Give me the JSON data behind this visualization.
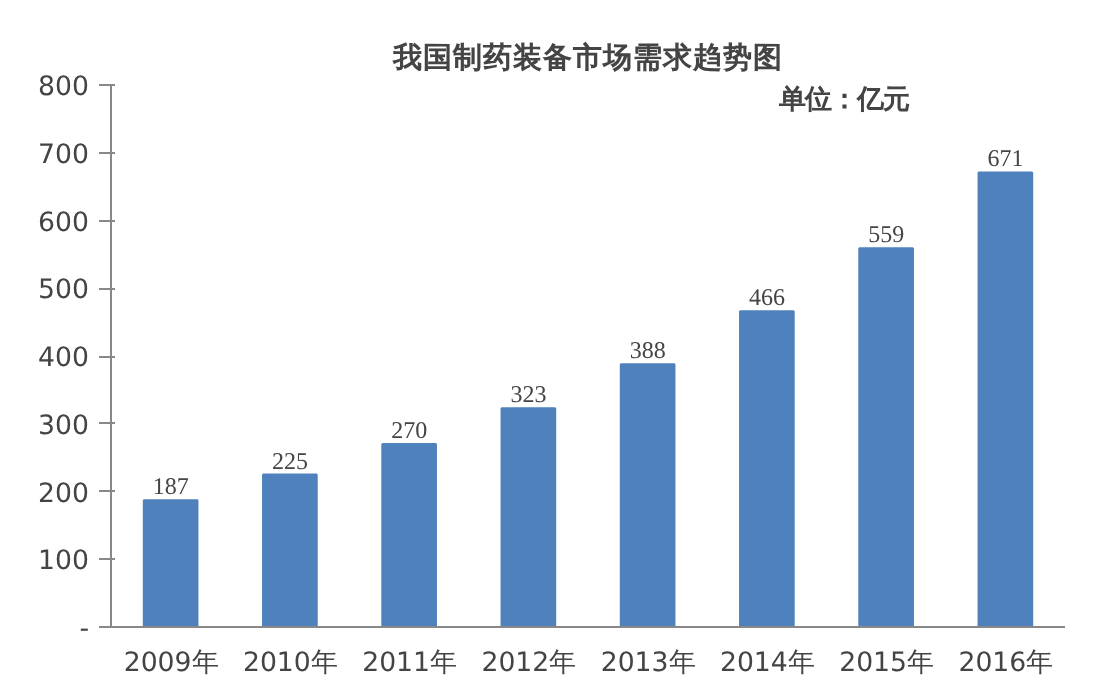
{
  "chart_data": {
    "type": "bar",
    "title": "我国制药装备市场需求趋势图",
    "annotations": [
      "单位：亿元"
    ],
    "categories": [
      "2009年",
      "2010年",
      "2011年",
      "2012年",
      "2013年",
      "2014年",
      "2015年",
      "2016年"
    ],
    "values": [
      187,
      225,
      270,
      323,
      388,
      466,
      559,
      671
    ],
    "color": "#4f81bd",
    "ylim": [
      0,
      800
    ],
    "yticks": [
      {
        "value": 0,
        "label": "-"
      },
      100,
      200,
      300,
      400,
      500,
      600,
      700,
      800
    ],
    "data_labels": true,
    "grid": false
  }
}
